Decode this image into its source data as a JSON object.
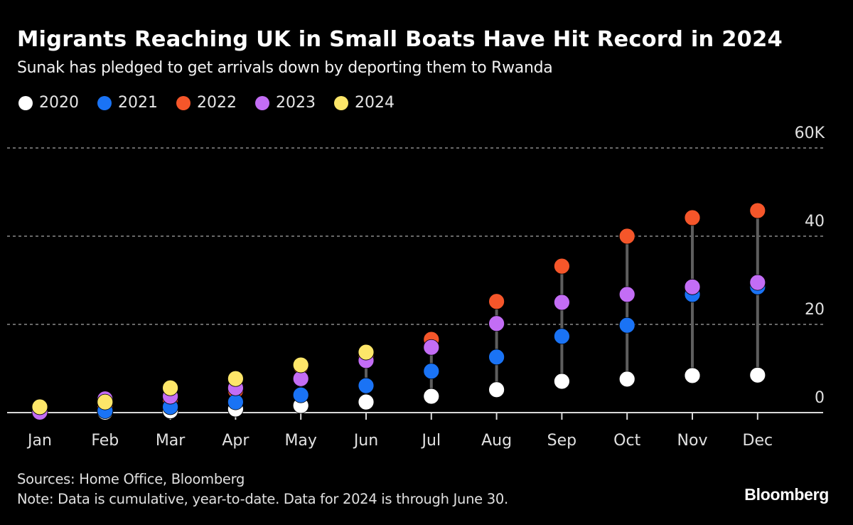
{
  "header": {
    "title": "Migrants Reaching UK in Small Boats Have Hit Record in 2024",
    "subtitle": "Sunak has pledged to get arrivals down by deporting them to Rwanda"
  },
  "footer": {
    "sources": "Sources: Home Office, Bloomberg",
    "note": "Note: Data is cumulative, year-to-date. Data for 2024 is through June 30.",
    "brand": "Bloomberg"
  },
  "chart_data": {
    "type": "scatter",
    "subtype": "dot-plot",
    "title": "Migrants Reaching UK in Small Boats Have Hit Record in 2024",
    "subtitle": "Sunak has pledged to get arrivals down by deporting them to Rwanda",
    "xlabel": "",
    "ylabel": "",
    "categories": [
      "Jan",
      "Feb",
      "Mar",
      "Apr",
      "May",
      "Jun",
      "Jul",
      "Aug",
      "Sep",
      "Oct",
      "Nov",
      "Dec"
    ],
    "ylim": [
      0,
      60
    ],
    "y_unit": "thousands",
    "y_ticks": [
      {
        "value": 0,
        "label": "0"
      },
      {
        "value": 20,
        "label": "20"
      },
      {
        "value": 40,
        "label": "40"
      },
      {
        "value": 60,
        "label": "60K"
      }
    ],
    "grid": true,
    "y_axis_position": "right",
    "legend_position": "top-left",
    "series": [
      {
        "name": "2020",
        "color": "#ffffff",
        "values": [
          0.1,
          0.1,
          0.4,
          0.8,
          1.6,
          2.4,
          3.7,
          5.2,
          7.1,
          7.6,
          8.4,
          8.5
        ]
      },
      {
        "name": "2021",
        "color": "#1a73f5",
        "values": [
          0.3,
          0.4,
          1.3,
          2.4,
          4.0,
          6.1,
          9.4,
          12.6,
          17.3,
          19.8,
          26.8,
          28.5
        ]
      },
      {
        "name": "2022",
        "color": "#f5562a",
        "values": [
          0.1,
          1.1,
          3.0,
          5.0,
          10.5,
          12.5,
          16.6,
          25.2,
          33.2,
          40.0,
          44.2,
          45.8
        ]
      },
      {
        "name": "2023",
        "color": "#c36df5",
        "values": [
          0.1,
          3.1,
          3.7,
          5.6,
          7.7,
          11.8,
          14.8,
          20.2,
          25.0,
          26.8,
          28.5,
          29.5
        ]
      },
      {
        "name": "2024",
        "color": "#fde669",
        "values": [
          1.3,
          2.4,
          5.6,
          7.7,
          10.8,
          13.7,
          null,
          null,
          null,
          null,
          null,
          null
        ]
      }
    ],
    "draw_order": [
      "2020",
      "2022",
      "2021",
      "2023",
      "2024"
    ]
  }
}
